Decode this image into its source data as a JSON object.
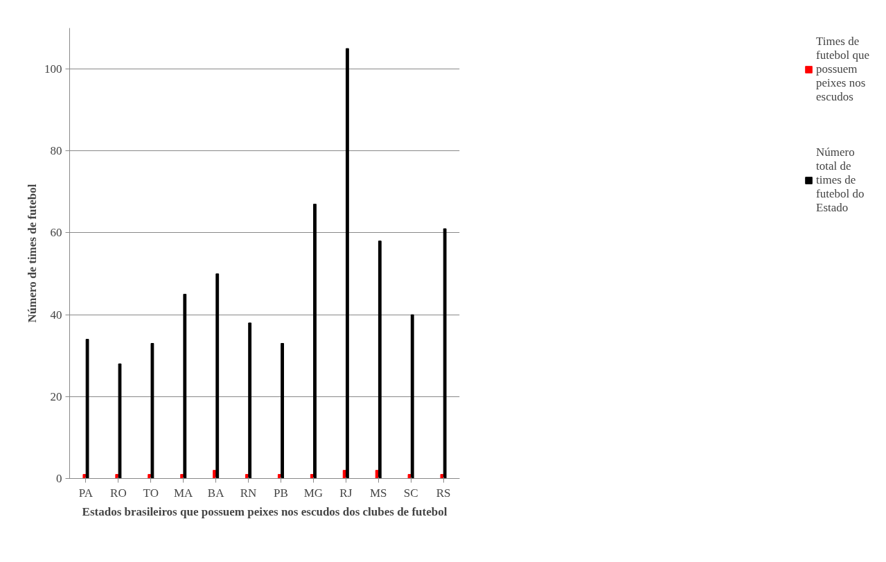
{
  "chart_data": {
    "type": "bar",
    "xlabel": "Estados brasileiros que possuem peixes nos escudos dos clubes de futebol",
    "ylabel": "Número de times de futebol",
    "categories": [
      "PA",
      "RO",
      "TO",
      "MA",
      "BA",
      "RN",
      "PB",
      "MG",
      "RJ",
      "MS",
      "SC",
      "RS"
    ],
    "series": [
      {
        "name": "Times de futebol que possuem peixes nos escudos",
        "color": "#ff0000",
        "values": [
          1,
          1,
          1,
          1,
          2,
          1,
          1,
          1,
          2,
          2,
          1,
          1
        ]
      },
      {
        "name": "Número total de times de futebol do Estado",
        "color": "#000000",
        "values": [
          34,
          28,
          33,
          45,
          50,
          38,
          33,
          67,
          105,
          58,
          40,
          61
        ]
      }
    ],
    "ylim": [
      0,
      110
    ],
    "yticks": [
      0,
      20,
      40,
      60,
      80,
      100
    ],
    "grid": "y",
    "legend": "right"
  }
}
